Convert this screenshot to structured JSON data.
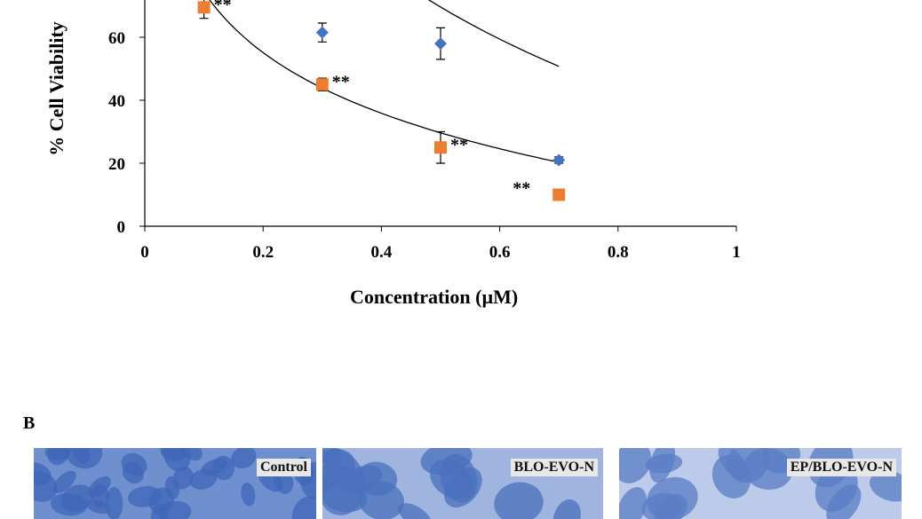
{
  "chart_data": {
    "type": "scatter",
    "xlabel": "Concentration  (µM)",
    "ylabel": "%  Cell Viability",
    "xlim": [
      0,
      1
    ],
    "ylim": [
      0,
      70
    ],
    "x_ticks": [
      "0",
      "0.2",
      "0.4",
      "0.6",
      "0.8",
      "1"
    ],
    "y_ticks": [
      "0",
      "20",
      "40",
      "60"
    ],
    "grid": false,
    "series": [
      {
        "marker": "diamond",
        "color": "#4472C4",
        "points": [
          {
            "x": 0.3,
            "y": 61.5,
            "err": 3
          },
          {
            "x": 0.5,
            "y": 58,
            "err": 5
          },
          {
            "x": 0.7,
            "y": 21,
            "err": 1
          }
        ],
        "trendline": {
          "type": "log",
          "a": 30.8,
          "b": -56,
          "x_range": [
            0.1,
            0.7
          ]
        }
      },
      {
        "marker": "square",
        "color": "#ED7D31",
        "points": [
          {
            "x": 0.1,
            "y": 69.5,
            "err": 3.5,
            "annotation": "**"
          },
          {
            "x": 0.3,
            "y": 45,
            "err": 2,
            "annotation": "**"
          },
          {
            "x": 0.5,
            "y": 25,
            "err": 5,
            "annotation": "**"
          },
          {
            "x": 0.7,
            "y": 10,
            "err": 0,
            "annotation": "**"
          }
        ],
        "trendline": {
          "type": "log",
          "a": 10.4,
          "b": -27.8,
          "x_range": [
            0.1,
            0.7
          ]
        }
      }
    ]
  },
  "panel_b": {
    "label": "B",
    "images": [
      {
        "tag": "Control",
        "fill": "#6f8fce",
        "cell": "#3f66b8"
      },
      {
        "tag": "BLO-EVO-N",
        "fill": "#9fb4df",
        "cell": "#4a70be"
      },
      {
        "tag": "EP/BLO-EVO-N",
        "fill": "#bccbe9",
        "cell": "#5a7cc4"
      }
    ]
  }
}
